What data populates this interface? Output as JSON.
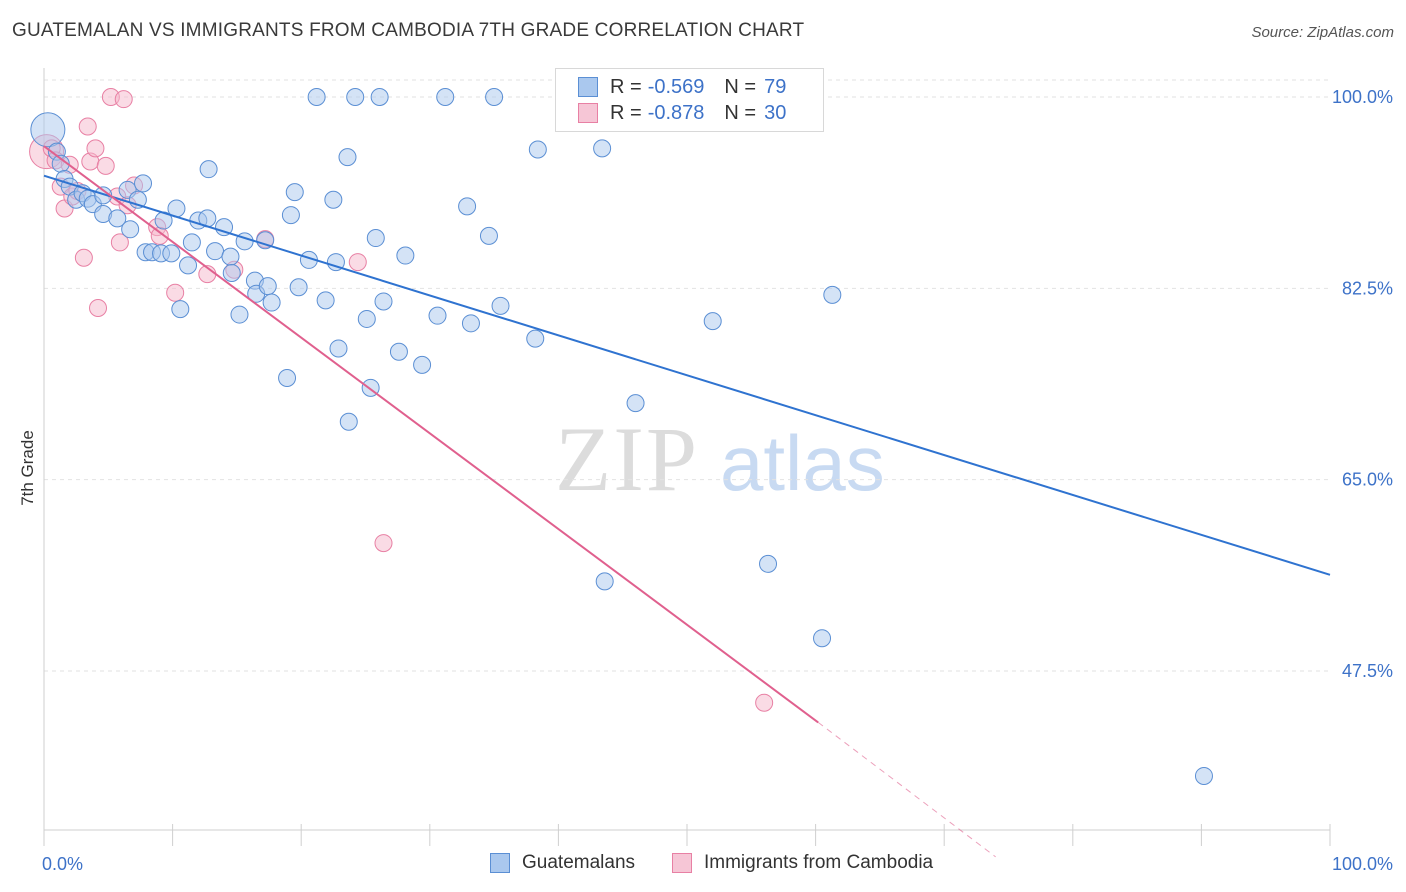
{
  "title": "GUATEMALAN VS IMMIGRANTS FROM CAMBODIA 7TH GRADE CORRELATION CHART",
  "source": "Source: ZipAtlas.com",
  "watermark": {
    "zip": "ZIP",
    "atlas": "atlas"
  },
  "colors": {
    "blue_fill": "#aac8ee",
    "blue_stroke": "#5b8fd4",
    "blue_line": "#2f73d0",
    "pink_fill": "#f6b8cc",
    "pink_stroke": "#e880a4",
    "pink_line": "#e0608e",
    "tick_label": "#3d72c8",
    "grid": "#e2e2e2"
  },
  "legend": {
    "rows": [
      {
        "r_label": "R =",
        "r_value": "-0.569",
        "n_label": "N =",
        "n_value": "79"
      },
      {
        "r_label": "R =",
        "r_value": "-0.878",
        "n_label": "N =",
        "n_value": "30"
      }
    ]
  },
  "chart_data": {
    "type": "scatter",
    "title": "GUATEMALAN VS IMMIGRANTS FROM CAMBODIA 7TH GRADE CORRELATION CHART",
    "xlabel": "",
    "ylabel": "7th Grade",
    "xlim": [
      0,
      100
    ],
    "ylim": [
      32,
      102
    ],
    "x_tick_labels": [
      {
        "value": 0,
        "label": "0.0%"
      },
      {
        "value": 100,
        "label": "100.0%"
      }
    ],
    "y_tick_labels": [
      {
        "value": 47.5,
        "label": "47.5%"
      },
      {
        "value": 65.0,
        "label": "65.0%"
      },
      {
        "value": 82.5,
        "label": "82.5%"
      },
      {
        "value": 100.0,
        "label": "100.0%"
      }
    ],
    "grid": true,
    "legend_position": "top-center",
    "series": [
      {
        "name": "Guatemalans",
        "color": "#5b8fd4",
        "trend": {
          "x0": 0,
          "y0": 92.8,
          "x1": 100,
          "y1": 56.3
        },
        "points": [
          {
            "x": 0.3,
            "y": 97.0,
            "big": true
          },
          {
            "x": 1.0,
            "y": 95.0
          },
          {
            "x": 1.3,
            "y": 93.9
          },
          {
            "x": 1.6,
            "y": 92.5
          },
          {
            "x": 2.0,
            "y": 91.8
          },
          {
            "x": 2.5,
            "y": 90.6
          },
          {
            "x": 3.0,
            "y": 91.2
          },
          {
            "x": 3.4,
            "y": 90.7
          },
          {
            "x": 3.8,
            "y": 90.2
          },
          {
            "x": 4.6,
            "y": 91.0
          },
          {
            "x": 4.6,
            "y": 89.3
          },
          {
            "x": 5.7,
            "y": 88.9
          },
          {
            "x": 6.5,
            "y": 91.5
          },
          {
            "x": 6.7,
            "y": 87.9
          },
          {
            "x": 7.3,
            "y": 90.6
          },
          {
            "x": 7.7,
            "y": 92.1
          },
          {
            "x": 7.9,
            "y": 85.8
          },
          {
            "x": 8.4,
            "y": 85.8
          },
          {
            "x": 9.1,
            "y": 85.7
          },
          {
            "x": 9.3,
            "y": 88.7
          },
          {
            "x": 9.9,
            "y": 85.7
          },
          {
            "x": 10.3,
            "y": 89.8
          },
          {
            "x": 10.6,
            "y": 80.6
          },
          {
            "x": 11.2,
            "y": 84.6
          },
          {
            "x": 11.5,
            "y": 86.7
          },
          {
            "x": 12.0,
            "y": 88.7
          },
          {
            "x": 12.7,
            "y": 88.9
          },
          {
            "x": 12.8,
            "y": 93.4
          },
          {
            "x": 13.3,
            "y": 85.9
          },
          {
            "x": 14.0,
            "y": 88.1
          },
          {
            "x": 14.5,
            "y": 85.4
          },
          {
            "x": 14.6,
            "y": 83.9
          },
          {
            "x": 15.2,
            "y": 80.1
          },
          {
            "x": 15.6,
            "y": 86.8
          },
          {
            "x": 16.4,
            "y": 83.2
          },
          {
            "x": 16.5,
            "y": 82.0
          },
          {
            "x": 17.2,
            "y": 86.9
          },
          {
            "x": 17.4,
            "y": 82.7
          },
          {
            "x": 17.7,
            "y": 81.2
          },
          {
            "x": 18.9,
            "y": 74.3
          },
          {
            "x": 19.2,
            "y": 89.2
          },
          {
            "x": 19.5,
            "y": 91.3
          },
          {
            "x": 19.8,
            "y": 82.6
          },
          {
            "x": 20.6,
            "y": 85.1
          },
          {
            "x": 21.2,
            "y": 100.0
          },
          {
            "x": 21.9,
            "y": 81.4
          },
          {
            "x": 22.5,
            "y": 90.6
          },
          {
            "x": 22.7,
            "y": 84.9
          },
          {
            "x": 22.9,
            "y": 77.0
          },
          {
            "x": 23.6,
            "y": 94.5
          },
          {
            "x": 23.7,
            "y": 70.3
          },
          {
            "x": 24.2,
            "y": 100.0
          },
          {
            "x": 25.1,
            "y": 79.7
          },
          {
            "x": 25.4,
            "y": 73.4
          },
          {
            "x": 25.8,
            "y": 87.1
          },
          {
            "x": 26.1,
            "y": 100.0
          },
          {
            "x": 26.4,
            "y": 81.3
          },
          {
            "x": 27.6,
            "y": 76.7
          },
          {
            "x": 28.1,
            "y": 85.5
          },
          {
            "x": 29.4,
            "y": 75.5
          },
          {
            "x": 30.6,
            "y": 80.0
          },
          {
            "x": 31.2,
            "y": 100.0
          },
          {
            "x": 32.9,
            "y": 90.0
          },
          {
            "x": 33.2,
            "y": 79.3
          },
          {
            "x": 34.6,
            "y": 87.3
          },
          {
            "x": 35.0,
            "y": 100.0
          },
          {
            "x": 35.5,
            "y": 80.9
          },
          {
            "x": 38.2,
            "y": 77.9
          },
          {
            "x": 38.4,
            "y": 95.2
          },
          {
            "x": 43.4,
            "y": 95.3
          },
          {
            "x": 43.6,
            "y": 55.7
          },
          {
            "x": 46.0,
            "y": 72.0
          },
          {
            "x": 52.0,
            "y": 79.5
          },
          {
            "x": 56.3,
            "y": 57.3
          },
          {
            "x": 58.8,
            "y": 100.0
          },
          {
            "x": 60.5,
            "y": 50.5
          },
          {
            "x": 61.3,
            "y": 81.9
          },
          {
            "x": 90.2,
            "y": 37.9
          }
        ]
      },
      {
        "name": "Immigrants from Cambodia",
        "color": "#e880a4",
        "trend": {
          "x0": 0,
          "y0": 95.5,
          "x1": 60.2,
          "y1": 42.8,
          "dash_x1": 74.0,
          "dash_y1": 30.5
        },
        "points": [
          {
            "x": 0.2,
            "y": 95.0,
            "big": true
          },
          {
            "x": 0.6,
            "y": 95.3
          },
          {
            "x": 0.9,
            "y": 94.2
          },
          {
            "x": 1.3,
            "y": 91.8
          },
          {
            "x": 1.6,
            "y": 89.8
          },
          {
            "x": 2.0,
            "y": 93.8
          },
          {
            "x": 2.2,
            "y": 90.9
          },
          {
            "x": 2.6,
            "y": 91.4
          },
          {
            "x": 3.1,
            "y": 85.3
          },
          {
            "x": 3.4,
            "y": 97.3
          },
          {
            "x": 3.6,
            "y": 94.1
          },
          {
            "x": 4.0,
            "y": 95.3
          },
          {
            "x": 4.2,
            "y": 80.7
          },
          {
            "x": 4.8,
            "y": 93.7
          },
          {
            "x": 5.2,
            "y": 100.0
          },
          {
            "x": 5.7,
            "y": 90.9
          },
          {
            "x": 5.9,
            "y": 86.7
          },
          {
            "x": 6.2,
            "y": 99.8
          },
          {
            "x": 6.5,
            "y": 90.1
          },
          {
            "x": 7.0,
            "y": 91.9
          },
          {
            "x": 8.8,
            "y": 88.1
          },
          {
            "x": 9.0,
            "y": 87.3
          },
          {
            "x": 10.2,
            "y": 82.1
          },
          {
            "x": 12.7,
            "y": 83.8
          },
          {
            "x": 14.8,
            "y": 84.2
          },
          {
            "x": 17.2,
            "y": 87.0
          },
          {
            "x": 24.4,
            "y": 84.9
          },
          {
            "x": 26.4,
            "y": 59.2
          },
          {
            "x": 56.0,
            "y": 44.6
          }
        ]
      }
    ]
  },
  "bottom_legend": [
    {
      "label": "Guatemalans"
    },
    {
      "label": "Immigrants from Cambodia"
    }
  ]
}
